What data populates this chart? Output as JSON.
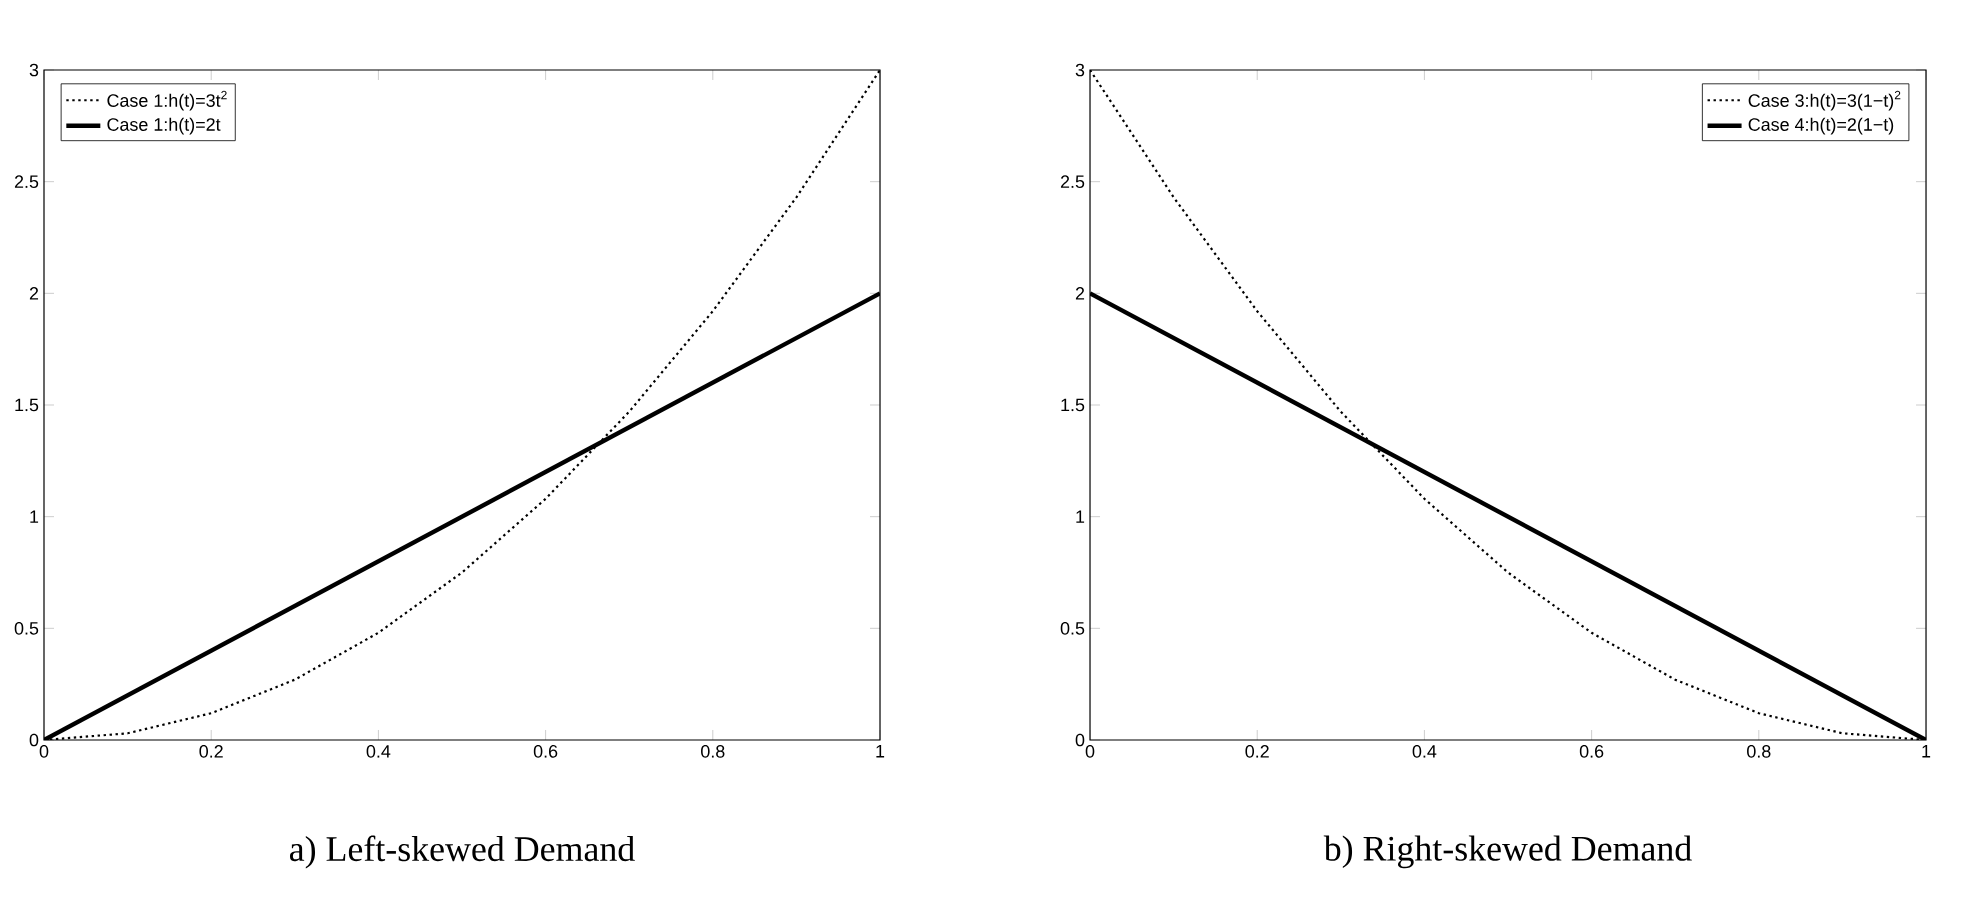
{
  "chart_data": [
    {
      "type": "line",
      "title": "a) Left-skewed Demand",
      "xlim": [
        0,
        1
      ],
      "ylim": [
        0,
        3
      ],
      "xticks": [
        0,
        0.2,
        0.4,
        0.6,
        0.8,
        1
      ],
      "yticks": [
        0,
        0.5,
        1,
        1.5,
        2,
        2.5,
        3
      ],
      "legend": "top left",
      "grid": false,
      "series": [
        {
          "name": "Case 1:h(t)=3t$^{2}$",
          "color": "#000000",
          "line_style": "dotted",
          "x": [
            0,
            0.1,
            0.2,
            0.3,
            0.4,
            0.5,
            0.6,
            0.7,
            0.8,
            0.9,
            1
          ],
          "values": [
            0,
            0.03,
            0.12,
            0.27,
            0.48,
            0.75,
            1.08,
            1.47,
            1.92,
            2.43,
            3
          ]
        },
        {
          "name": "Case 1:h(t)=2t",
          "color": "#000000",
          "line_style": "solid",
          "x": [
            0,
            1
          ],
          "values": [
            0,
            2
          ]
        }
      ]
    },
    {
      "type": "line",
      "title": "b) Right-skewed Demand",
      "xlim": [
        0,
        1
      ],
      "ylim": [
        0,
        3
      ],
      "xticks": [
        0,
        0.2,
        0.4,
        0.6,
        0.8,
        1
      ],
      "yticks": [
        0,
        0.5,
        1,
        1.5,
        2,
        2.5,
        3
      ],
      "legend": "top right",
      "grid": false,
      "series": [
        {
          "name": "Case 3:h(t)=3(1−t)$^{2}$",
          "color": "#000000",
          "line_style": "dotted",
          "x": [
            0,
            0.1,
            0.2,
            0.3,
            0.4,
            0.5,
            0.6,
            0.7,
            0.8,
            0.9,
            1
          ],
          "values": [
            3,
            2.43,
            1.92,
            1.47,
            1.08,
            0.75,
            0.48,
            0.27,
            0.12,
            0.03,
            0
          ]
        },
        {
          "name": "Case 4:h(t)=2(1−t)",
          "color": "#000000",
          "line_style": "solid",
          "x": [
            0,
            1
          ],
          "values": [
            2,
            0
          ]
        }
      ]
    }
  ]
}
